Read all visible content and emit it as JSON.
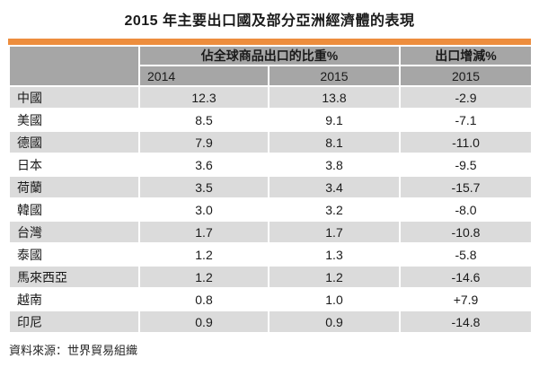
{
  "title": "2015 年主要出口國及部分亞洲經濟體的表現",
  "source": "資料來源：世界貿易組織",
  "chart_data": {
    "type": "table",
    "title": "2015 年主要出口國及部分亞洲經濟體的表現",
    "column_group_header": "佔全球商品出口的比重%",
    "column_single_header": "出口增減%",
    "year_row": [
      "2014",
      "2015",
      "2015"
    ],
    "row_header_label": "",
    "rows": [
      {
        "economy": "中國",
        "share_2014": "12.3",
        "share_2015": "13.8",
        "export_change_2015": "-2.9"
      },
      {
        "economy": "美國",
        "share_2014": "8.5",
        "share_2015": "9.1",
        "export_change_2015": "-7.1"
      },
      {
        "economy": "德國",
        "share_2014": "7.9",
        "share_2015": "8.1",
        "export_change_2015": "-11.0"
      },
      {
        "economy": "日本",
        "share_2014": "3.6",
        "share_2015": "3.8",
        "export_change_2015": "-9.5"
      },
      {
        "economy": "荷蘭",
        "share_2014": "3.5",
        "share_2015": "3.4",
        "export_change_2015": "-15.7"
      },
      {
        "economy": "韓國",
        "share_2014": "3.0",
        "share_2015": "3.2",
        "export_change_2015": "-8.0"
      },
      {
        "economy": "台灣",
        "share_2014": "1.7",
        "share_2015": "1.7",
        "export_change_2015": "-10.8"
      },
      {
        "economy": "泰國",
        "share_2014": "1.2",
        "share_2015": "1.3",
        "export_change_2015": "-5.8"
      },
      {
        "economy": "馬來西亞",
        "share_2014": "1.2",
        "share_2015": "1.2",
        "export_change_2015": "-14.6"
      },
      {
        "economy": "越南",
        "share_2014": "0.8",
        "share_2015": "1.0",
        "export_change_2015": "+7.9"
      },
      {
        "economy": "印尼",
        "share_2014": "0.9",
        "share_2015": "0.9",
        "export_change_2015": "-14.8"
      }
    ],
    "source": "資料來源：世界貿易組織"
  },
  "colors": {
    "accent_bar": "#ED8D3D",
    "header_bg": "#A6A6A6",
    "row_alt_bg": "#DBDBDB",
    "row_bg": "#FFFFFF",
    "text": "#1A1A1A"
  }
}
